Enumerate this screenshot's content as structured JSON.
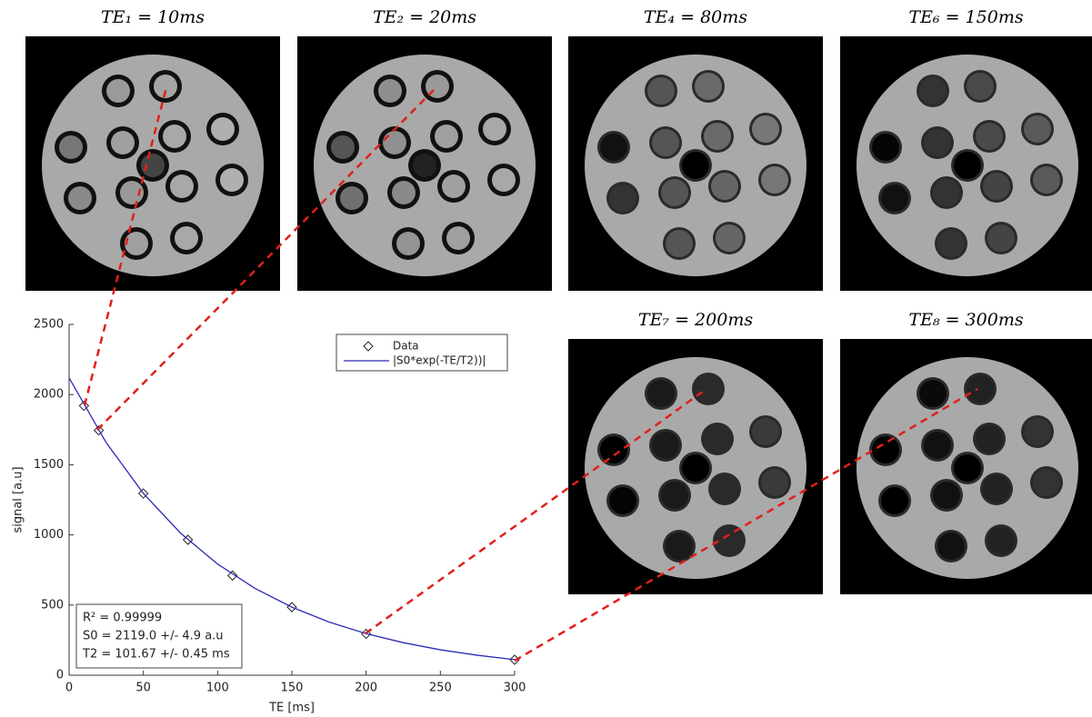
{
  "chart_data": {
    "type": "scatter",
    "xlabel": "TE [ms]",
    "ylabel": "signal [a.u]",
    "xlim": [
      0,
      300
    ],
    "xticks": [
      0,
      50,
      100,
      150,
      200,
      250,
      300
    ],
    "ylim": [
      0,
      2500
    ],
    "yticks": [
      0,
      500,
      1000,
      1500,
      2000,
      2500
    ],
    "grid": false,
    "legend": "upper right",
    "series": [
      {
        "name": "Data",
        "type": "scatter",
        "marker": "diamond",
        "color": "#222222",
        "x": [
          10,
          20,
          50,
          80,
          110,
          150,
          200,
          300
        ],
        "values": [
          1920,
          1745,
          1295,
          965,
          710,
          485,
          295,
          110
        ]
      },
      {
        "name": "|S0*exp(-TE/T2))|",
        "type": "line",
        "color": "#2b2bb5",
        "x": [
          0,
          25,
          50,
          75,
          100,
          125,
          150,
          175,
          200,
          225,
          250,
          275,
          300
        ],
        "values": [
          2119,
          1657,
          1296,
          1013,
          792,
          620,
          485,
          379,
          296,
          232,
          181,
          142,
          111
        ]
      }
    ],
    "annotations": [
      "R² = 0.99999",
      "S0 = 2119.0 +/- 4.9 a.u",
      "T2 = 101.67 +/- 0.45 ms"
    ]
  },
  "panels": [
    {
      "title": "TE₁ = 10ms"
    },
    {
      "title": "TE₂ = 20ms"
    },
    {
      "title": "TE₄ = 80ms"
    },
    {
      "title": "TE₆ = 150ms"
    },
    {
      "title": "TE₇ = 200ms"
    },
    {
      "title": "TE₈ = 300ms"
    }
  ]
}
